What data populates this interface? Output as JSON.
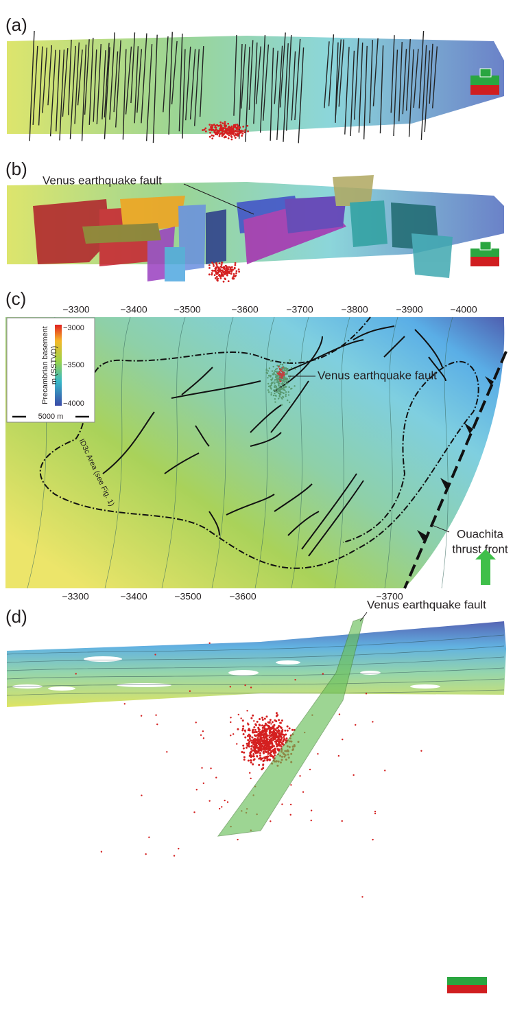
{
  "panels": [
    {
      "label": "(a)"
    },
    {
      "label": "(b)",
      "annotation": "Venus earthquake fault"
    },
    {
      "label": "(c)",
      "top_axis": [
        "−3300",
        "−3400",
        "−3500",
        "−3600",
        "−3700",
        "−3800",
        "−3900",
        "−4000"
      ],
      "colorbar": {
        "title": [
          "Precambrian basement",
          "m (SSTVD)"
        ],
        "ticks": [
          "−3000",
          "−3500",
          "−4000"
        ],
        "scale": "5000 m"
      },
      "area_label": "ID3c Area (see Fig. 1)",
      "fault_label": "Venus earthquake fault",
      "thrust_label": [
        "Ouachita",
        "thrust front"
      ],
      "bottom_axis": [
        "−3300",
        "−3400",
        "−3500",
        "−3600",
        "−3700"
      ]
    },
    {
      "label": "(d)",
      "annotation": "Venus earthquake fault"
    }
  ]
}
